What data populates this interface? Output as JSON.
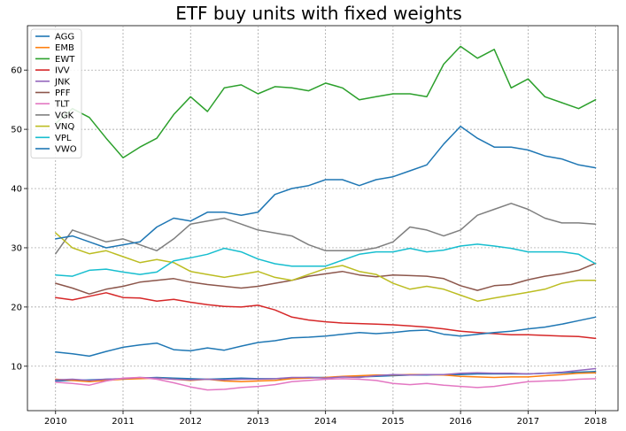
{
  "chart_data": {
    "type": "line",
    "title": "ETF buy units with fixed weights",
    "xlabel": "",
    "ylabel": "",
    "x_ticks": [
      "2010",
      "2011",
      "2012",
      "2013",
      "2014",
      "2015",
      "2016",
      "2017",
      "2018"
    ],
    "y_ticks": [
      10,
      20,
      30,
      40,
      50,
      60
    ],
    "xlim": [
      "2009-08",
      "2018-05"
    ],
    "ylim": [
      2.5,
      67.5
    ],
    "grid": true,
    "legend_position": "upper-left",
    "x": [
      "2010-01",
      "2010-04",
      "2010-07",
      "2010-10",
      "2011-01",
      "2011-04",
      "2011-07",
      "2011-10",
      "2012-01",
      "2012-04",
      "2012-07",
      "2012-10",
      "2013-01",
      "2013-04",
      "2013-07",
      "2013-10",
      "2014-01",
      "2014-04",
      "2014-07",
      "2014-10",
      "2015-01",
      "2015-04",
      "2015-07",
      "2015-10",
      "2016-01",
      "2016-04",
      "2016-07",
      "2016-10",
      "2017-01",
      "2017-04",
      "2017-07",
      "2017-10",
      "2018-01"
    ],
    "series": [
      {
        "name": "AGG",
        "color": "#1f77b4",
        "values": [
          7.5,
          7.6,
          7.7,
          7.8,
          7.9,
          8.0,
          8.1,
          8.0,
          7.9,
          7.8,
          7.9,
          8.0,
          7.9,
          7.9,
          8.0,
          8.1,
          8.1,
          8.2,
          8.2,
          8.3,
          8.4,
          8.5,
          8.5,
          8.6,
          8.6,
          8.7,
          8.7,
          8.7,
          8.7,
          8.8,
          8.9,
          9.0,
          9.1
        ]
      },
      {
        "name": "EMB",
        "color": "#ff7f0e",
        "values": [
          7.8,
          7.6,
          7.4,
          7.6,
          7.8,
          7.9,
          8.0,
          7.8,
          7.6,
          7.8,
          7.5,
          7.4,
          7.5,
          7.6,
          7.9,
          8.0,
          8.1,
          8.3,
          8.4,
          8.5,
          8.5,
          8.6,
          8.6,
          8.5,
          8.3,
          8.2,
          8.1,
          8.2,
          8.2,
          8.4,
          8.6,
          8.8,
          8.9
        ]
      },
      {
        "name": "EWT",
        "color": "#2ca02c",
        "values": [
          51,
          53.5,
          52,
          48.5,
          45.2,
          47,
          48.5,
          52.5,
          55.5,
          53,
          57,
          57.5,
          56,
          57.2,
          57,
          56.5,
          57.8,
          57,
          55,
          55.5,
          56,
          56,
          55.5,
          61,
          64,
          62,
          63.5,
          57,
          58.5,
          55.5,
          54.5,
          53.5,
          55
        ]
      },
      {
        "name": "IVV",
        "color": "#d62728",
        "values": [
          21.6,
          21.2,
          21.8,
          22.4,
          21.6,
          21.5,
          21.0,
          21.3,
          20.8,
          20.4,
          20.1,
          20.0,
          20.3,
          19.5,
          18.3,
          17.8,
          17.5,
          17.3,
          17.2,
          17.1,
          17.0,
          16.8,
          16.6,
          16.3,
          15.9,
          15.7,
          15.5,
          15.3,
          15.3,
          15.2,
          15.1,
          15.0,
          14.7
        ]
      },
      {
        "name": "JNK",
        "color": "#9467bd",
        "values": [
          7.7,
          7.8,
          7.6,
          7.8,
          7.9,
          8.1,
          8.0,
          7.8,
          7.7,
          7.8,
          7.7,
          7.8,
          7.8,
          7.9,
          8.1,
          8.1,
          8.0,
          8.2,
          8.1,
          8.4,
          8.6,
          8.5,
          8.6,
          8.6,
          8.8,
          8.9,
          8.8,
          8.8,
          8.7,
          8.8,
          9.0,
          9.3,
          9.6
        ]
      },
      {
        "name": "PFF",
        "color": "#8c564b",
        "values": [
          24,
          23.2,
          22.2,
          23,
          23.5,
          24.2,
          24.5,
          24.8,
          24.2,
          23.8,
          23.5,
          23.2,
          23.5,
          24,
          24.5,
          25.2,
          25.6,
          26,
          25.4,
          25.1,
          25.4,
          25.3,
          25.2,
          24.8,
          23.6,
          22.8,
          23.6,
          23.8,
          24.6,
          25.2,
          25.6,
          26.2,
          27.4
        ]
      },
      {
        "name": "TLT",
        "color": "#e377c2",
        "values": [
          7.3,
          7.1,
          6.8,
          7.5,
          8.0,
          8.1,
          7.8,
          7.2,
          6.5,
          6.0,
          6.1,
          6.4,
          6.6,
          6.9,
          7.4,
          7.6,
          7.8,
          7.9,
          7.8,
          7.6,
          7.1,
          6.9,
          7.1,
          6.8,
          6.6,
          6.4,
          6.6,
          7.0,
          7.4,
          7.5,
          7.6,
          7.8,
          7.9
        ]
      },
      {
        "name": "VGK",
        "color": "#7f7f7f",
        "values": [
          29,
          33,
          32,
          31,
          31.5,
          30.5,
          29.5,
          31.5,
          34,
          34.5,
          35,
          34,
          33,
          32.5,
          32,
          30.5,
          29.5,
          29.5,
          29.5,
          30,
          31,
          33.5,
          33,
          32,
          33,
          35.5,
          36.5,
          37.5,
          36.5,
          35,
          34.2,
          34.2,
          34
        ]
      },
      {
        "name": "VNQ",
        "color": "#bcbd22",
        "values": [
          32.5,
          30,
          29,
          29.5,
          28.5,
          27.5,
          28,
          27.5,
          26,
          25.5,
          25,
          25.5,
          26,
          25,
          24.5,
          25.5,
          26.5,
          27,
          26,
          25.5,
          24,
          23,
          23.5,
          23,
          22,
          21,
          21.5,
          22,
          22.5,
          23,
          24,
          24.5,
          24.5
        ]
      },
      {
        "name": "VPL",
        "color": "#17becf",
        "values": [
          25.4,
          25.2,
          26.2,
          26.4,
          25.9,
          25.5,
          25.9,
          27.8,
          28.3,
          28.9,
          29.9,
          29.3,
          28.1,
          27.3,
          26.9,
          26.9,
          26.9,
          27.9,
          28.9,
          29.3,
          29.3,
          29.9,
          29.3,
          29.6,
          30.3,
          30.6,
          30.3,
          29.9,
          29.3,
          29.3,
          29.3,
          28.9,
          27.3
        ]
      },
      {
        "name": "VWO",
        "color": "#1f77b4",
        "values": [
          31.5,
          32,
          31,
          30,
          30.5,
          31,
          33.5,
          35,
          34.5,
          36,
          36,
          35.5,
          36,
          39,
          40,
          40.5,
          41.5,
          41.5,
          40.5,
          41.5,
          42,
          43,
          44,
          47.5,
          50.5,
          48.5,
          47,
          47,
          46.5,
          45.5,
          45,
          44,
          43.5
        ]
      },
      {
        "name": "",
        "color": "#1f77b4",
        "values": [
          12.4,
          12.1,
          11.7,
          12.5,
          13.2,
          13.6,
          13.9,
          12.8,
          12.6,
          13.1,
          12.7,
          13.4,
          14.0,
          14.3,
          14.8,
          14.9,
          15.1,
          15.4,
          15.7,
          15.5,
          15.7,
          16.0,
          16.1,
          15.4,
          15.1,
          15.4,
          15.7,
          15.9,
          16.3,
          16.6,
          17.1,
          17.7,
          18.3
        ]
      }
    ]
  }
}
